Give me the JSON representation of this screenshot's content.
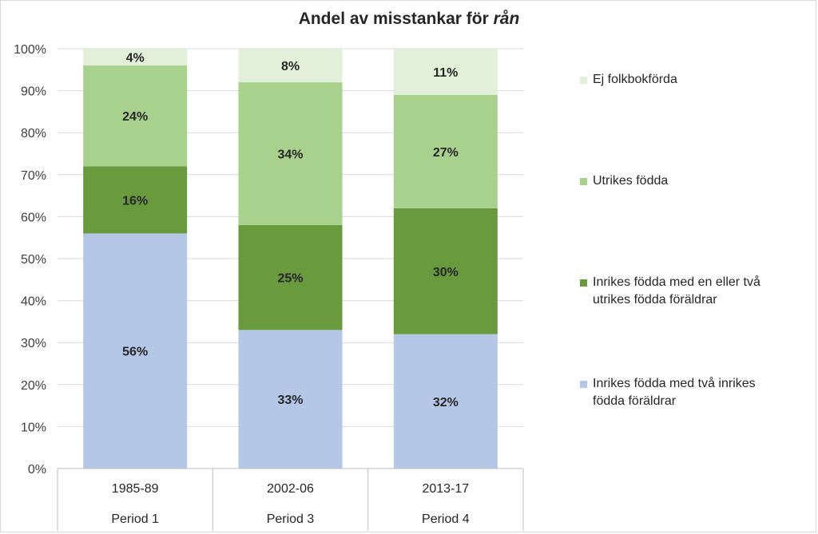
{
  "chart_data": {
    "type": "bar",
    "stacked": true,
    "title": "Andel av misstankar för",
    "title_emphasis": "rån",
    "categories": [
      "1985-89",
      "2002-06",
      "2013-17"
    ],
    "category_groups": [
      "Period 1",
      "Period 3",
      "Period 4"
    ],
    "ylim": [
      0,
      100
    ],
    "yticks": [
      "0%",
      "10%",
      "20%",
      "30%",
      "40%",
      "50%",
      "60%",
      "70%",
      "80%",
      "90%",
      "100%"
    ],
    "grid": true,
    "legend_position": "right",
    "series": [
      {
        "name": "Inrikes födda med två inrikes födda föräldrar",
        "values": [
          56,
          33,
          32
        ],
        "labels": [
          "56%",
          "33%",
          "32%"
        ],
        "color": "#b4c7e7"
      },
      {
        "name": "Inrikes födda med en eller två utrikes födda föräldrar",
        "values": [
          16,
          25,
          30
        ],
        "labels": [
          "16%",
          "25%",
          "30%"
        ],
        "color": "#6a9a3e"
      },
      {
        "name": "Utrikes födda",
        "values": [
          24,
          34,
          27
        ],
        "labels": [
          "24%",
          "34%",
          "27%"
        ],
        "color": "#a9d18e"
      },
      {
        "name": "Ej folkbokförda",
        "values": [
          4,
          8,
          11
        ],
        "labels": [
          "4%",
          "8%",
          "11%"
        ],
        "color": "#e2f0d9"
      }
    ]
  }
}
